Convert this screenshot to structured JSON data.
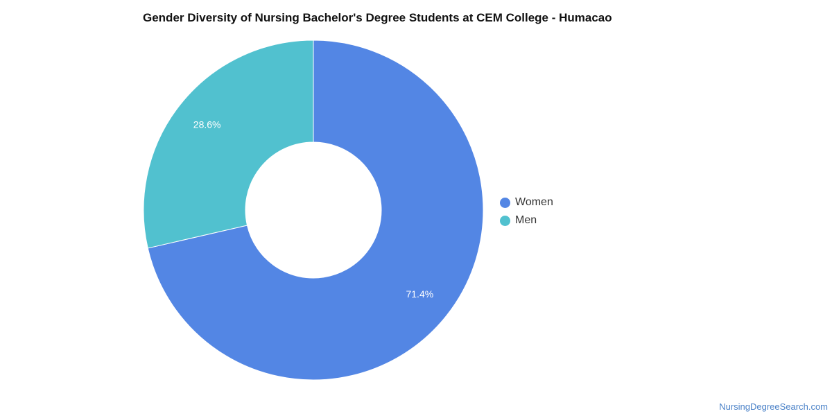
{
  "chart_data": {
    "type": "pie",
    "title": "Gender Diversity of Nursing Bachelor's Degree Students at CEM College - Humacao",
    "categories": [
      "Women",
      "Men"
    ],
    "values": [
      71.4,
      28.6
    ],
    "labels": [
      "71.4%",
      "28.6%"
    ],
    "colors": [
      "#5386e4",
      "#51c1cf"
    ],
    "donut": true,
    "legend": {
      "position": "right",
      "items": [
        "Women",
        "Men"
      ]
    }
  },
  "source": "NursingDegreeSearch.com"
}
